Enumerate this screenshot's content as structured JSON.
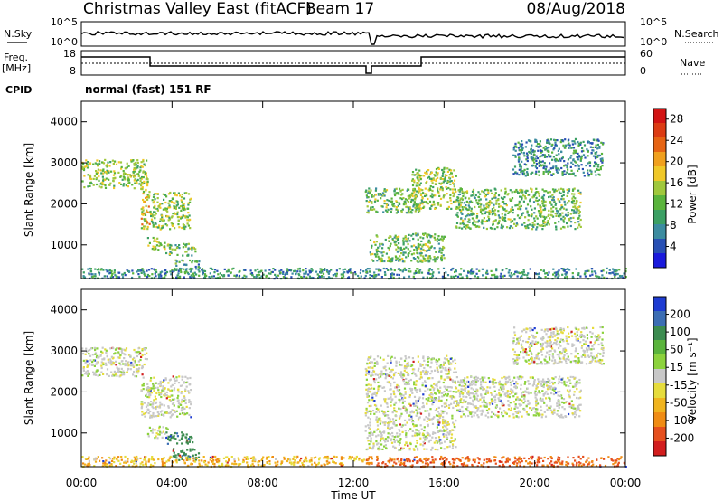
{
  "header": {
    "title": "Christmas Valley East (fitACF)",
    "beam": "Beam 17",
    "date": "08/Aug/2018"
  },
  "meta_panels": {
    "nsky_label": "N.Sky",
    "nsearch_label": "N.Search",
    "freq_label_top": "Freq.",
    "freq_label_unit": "[MHz]",
    "nave_label": "Nave",
    "cpid_label": "CPID",
    "noise_left_ticks": [
      "10^5",
      "10^0"
    ],
    "noise_right_ticks": [
      "10^5",
      "10^0"
    ],
    "freq_left_ticks": [
      "18",
      "8"
    ],
    "freq_right_ticks": [
      "60",
      "0"
    ],
    "cpid_text": "normal (fast) 151 RF"
  },
  "chart_data": [
    {
      "type": "heatmap",
      "panel": "power",
      "ylabel": "Slant Range [km]",
      "y_ticks": [
        1000,
        2000,
        3000,
        4000
      ],
      "ylim": [
        180,
        4500
      ],
      "x_ticks": [
        "00:00",
        "04:00",
        "08:00",
        "12:00",
        "16:00",
        "20:00",
        "00:00"
      ],
      "xlim_hours": [
        0,
        24
      ],
      "colorbar": {
        "label": "Power [dB]",
        "ticks": [
          4,
          8,
          12,
          16,
          20,
          24,
          28
        ],
        "range": [
          0,
          30
        ],
        "colors": [
          "#1a1adc",
          "#2850b4",
          "#3c8ca0",
          "#3ca064",
          "#5ab43c",
          "#a0c83c",
          "#f0c828",
          "#f0a01e",
          "#e66414",
          "#dc3c14",
          "#d21414"
        ]
      },
      "echo_regions": [
        {
          "t": [
            0.0,
            2.9
          ],
          "r": [
            2400,
            3100
          ],
          "value": 14
        },
        {
          "t": [
            2.6,
            3.0
          ],
          "r": [
            1300,
            2400
          ],
          "value": 18
        },
        {
          "t": [
            3.0,
            4.8
          ],
          "r": [
            1400,
            2300
          ],
          "value": 14
        },
        {
          "t": [
            2.9,
            3.8
          ],
          "r": [
            900,
            1200
          ],
          "value": 14
        },
        {
          "t": [
            3.7,
            5.0
          ],
          "r": [
            750,
            1050
          ],
          "value": 12
        },
        {
          "t": [
            4.0,
            5.2
          ],
          "r": [
            350,
            650
          ],
          "value": 10
        },
        {
          "t": [
            12.5,
            15.0
          ],
          "r": [
            1800,
            2400
          ],
          "value": 12
        },
        {
          "t": [
            12.7,
            16.0
          ],
          "r": [
            600,
            1300
          ],
          "value": 12
        },
        {
          "t": [
            14.5,
            16.5
          ],
          "r": [
            1900,
            2900
          ],
          "value": 14
        },
        {
          "t": [
            16.5,
            22.0
          ],
          "r": [
            1400,
            2400
          ],
          "value": 12
        },
        {
          "t": [
            19.0,
            23.0
          ],
          "r": [
            2700,
            3600
          ],
          "value": 8
        },
        {
          "t": [
            0.0,
            24.0
          ],
          "r": [
            200,
            450
          ],
          "value": 8
        }
      ]
    },
    {
      "type": "heatmap",
      "panel": "velocity",
      "ylabel": "Slant Range [km]",
      "y_ticks": [
        1000,
        2000,
        3000,
        4000
      ],
      "ylim": [
        180,
        4500
      ],
      "x_ticks": [
        "00:00",
        "04:00",
        "08:00",
        "12:00",
        "16:00",
        "20:00",
        "00:00"
      ],
      "xlabel": "Time UT",
      "xlim_hours": [
        0,
        24
      ],
      "colorbar": {
        "label": "Velocity [m s⁻¹]",
        "ticks": [
          200,
          100,
          50,
          15,
          -15,
          -50,
          -100,
          -200
        ],
        "colors": [
          "#1e3cd2",
          "#3c6eb4",
          "#3c8c50",
          "#5ab43c",
          "#8cd23c",
          "#c8c8c8",
          "#e6dc3c",
          "#f0b41e",
          "#f08c14",
          "#e6501e",
          "#d21e1e"
        ]
      },
      "echo_regions": [
        {
          "t": [
            0.0,
            2.9
          ],
          "r": [
            2400,
            3100
          ],
          "value": 0
        },
        {
          "t": [
            2.6,
            4.8
          ],
          "r": [
            1400,
            2400
          ],
          "value": 0
        },
        {
          "t": [
            2.9,
            3.8
          ],
          "r": [
            900,
            1200
          ],
          "value": 0
        },
        {
          "t": [
            3.7,
            5.0
          ],
          "r": [
            750,
            1050
          ],
          "value": 60
        },
        {
          "t": [
            4.0,
            5.2
          ],
          "r": [
            350,
            650
          ],
          "value": 60
        },
        {
          "t": [
            12.5,
            16.5
          ],
          "r": [
            600,
            2900
          ],
          "value": 0
        },
        {
          "t": [
            16.5,
            22.0
          ],
          "r": [
            1400,
            2400
          ],
          "value": 0
        },
        {
          "t": [
            19.0,
            23.0
          ],
          "r": [
            2700,
            3600
          ],
          "value": 0
        },
        {
          "t": [
            0.0,
            12.5
          ],
          "r": [
            200,
            450
          ],
          "value": -30
        },
        {
          "t": [
            12.5,
            24.0
          ],
          "r": [
            200,
            450
          ],
          "value": -80
        }
      ]
    }
  ]
}
